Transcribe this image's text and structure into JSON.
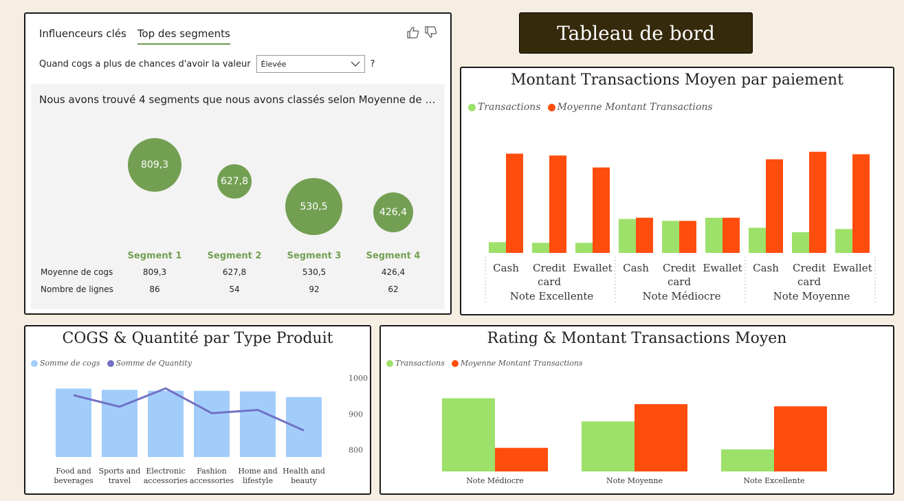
{
  "header": {
    "title": "Tableau de bord"
  },
  "key_influencers": {
    "tabs": [
      "Influenceurs clés",
      "Top des segments"
    ],
    "active_tab": 1,
    "question_text": "Quand cogs a plus de chances d'avoir la valeur",
    "selected_value": "Élevée",
    "help": "?",
    "description": "Nous avons trouvé 4 segments que nous avons classés selon Moyenne de co...",
    "segments": [
      {
        "label": "Segment 1",
        "bubble": "809,3",
        "avg_cogs": "809,3",
        "rows": "86"
      },
      {
        "label": "Segment 2",
        "bubble": "627,8",
        "avg_cogs": "627,8",
        "rows": "54"
      },
      {
        "label": "Segment 3",
        "bubble": "530,5",
        "avg_cogs": "530,5",
        "rows": "92"
      },
      {
        "label": "Segment 4",
        "bubble": "426,4",
        "avg_cogs": "426,4",
        "rows": "62"
      }
    ],
    "row_labels": {
      "avg": "Moyenne de cogs",
      "count": "Nombre de lignes"
    }
  },
  "chart_data": [
    {
      "type": "bar",
      "title": "Montant Transactions Moyen par paiement",
      "groups": [
        "Note Excellente",
        "Note Médiocre",
        "Note Moyenne"
      ],
      "categories": [
        "Cash",
        "Credit card",
        "Ewallet",
        "Cash",
        "Credit card",
        "Ewallet",
        "Cash",
        "Credit card",
        "Ewallet"
      ],
      "series": [
        {
          "name": "Transactions",
          "color": "#9de06a",
          "values": [
            17,
            16,
            16,
            54,
            51,
            56,
            40,
            33,
            38
          ]
        },
        {
          "name": "Moyenne Montant Transactions",
          "color": "#ff4d0d",
          "values": [
            158,
            155,
            136,
            56,
            51,
            56,
            149,
            161,
            157
          ]
        }
      ],
      "ylim": [
        0,
        175
      ]
    },
    {
      "type": "bar+line",
      "title": "COGS & Quantité par Type Produit",
      "categories": [
        "Food and beverages",
        "Sports and travel",
        "Electronic accessories",
        "Fashion accessories",
        "Home and lifestyle",
        "Health and beauty"
      ],
      "series": [
        {
          "name": "Somme de cogs",
          "type": "bar",
          "color": "#a2cdfb",
          "values": [
            53472,
            52497,
            51750,
            51719,
            51297,
            46851
          ]
        },
        {
          "name": "Somme de Quantity",
          "type": "line",
          "color": "#7170c4",
          "values": [
            952,
            920,
            971,
            902,
            911,
            854
          ]
        }
      ],
      "y_left_lim": [
        0,
        58000
      ],
      "y_right_ticks": [
        "800",
        "900",
        "1000"
      ],
      "y_right_lim": [
        780,
        1000
      ]
    },
    {
      "type": "bar",
      "title": "Rating & Montant Transactions Moyen",
      "categories": [
        "Note Médiocre",
        "Note Moyenne",
        "Note Excellente"
      ],
      "series": [
        {
          "name": "Transactions",
          "color": "#9de06a",
          "values": [
            335,
            229,
            101
          ]
        },
        {
          "name": "Moyenne Montant Transactions",
          "color": "#ff4d0d",
          "values": [
            108,
            308,
            298
          ]
        }
      ],
      "ylim": [
        0,
        390
      ]
    }
  ]
}
